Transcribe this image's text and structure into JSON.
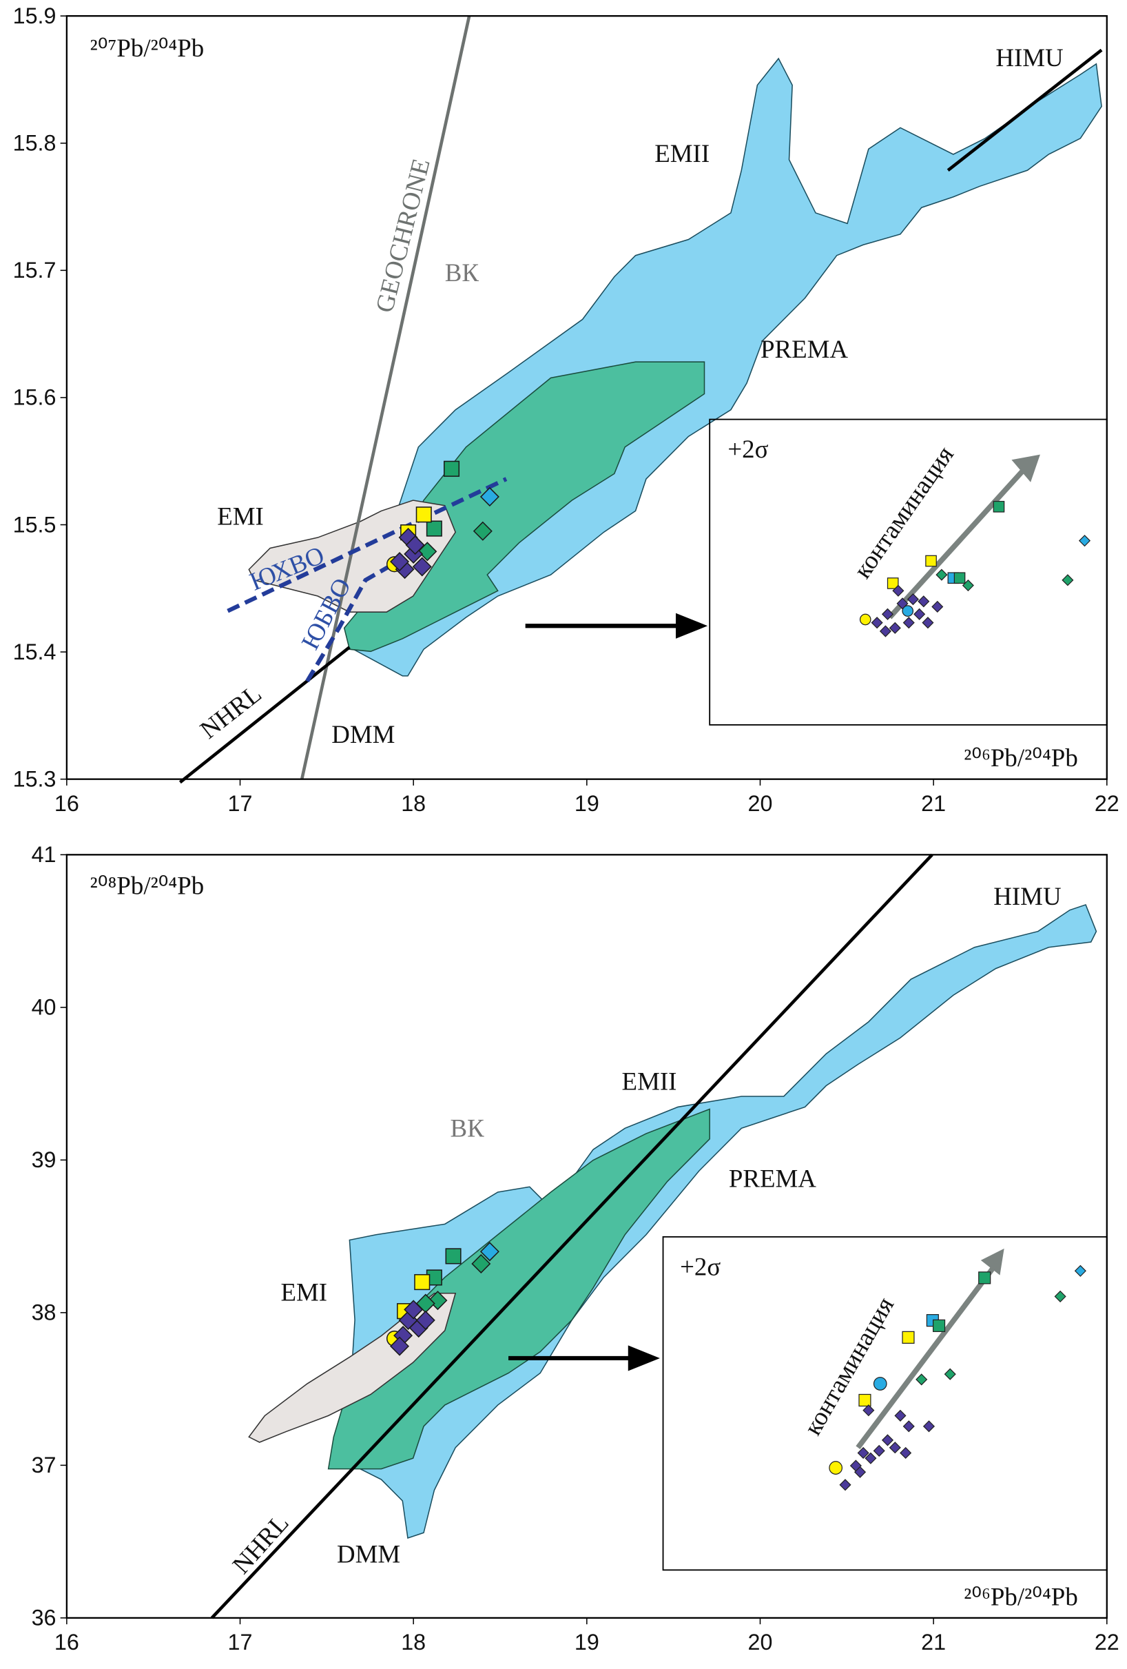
{
  "chart_data": [
    {
      "type": "scatter",
      "xlim": [
        16,
        22
      ],
      "xticks": [
        16,
        17,
        18,
        19,
        20,
        21,
        22
      ],
      "ylim": [
        15.3,
        15.9
      ],
      "yticks": [
        15.3,
        15.4,
        15.5,
        15.6,
        15.7,
        15.8,
        15.9
      ],
      "annotations": [
        "²⁰⁷Pb/²⁰⁴Pb",
        "HIMU",
        "EMII",
        "GEOCHRONE",
        "ВК",
        "PREMA",
        "EMI",
        "ЮХВО",
        "ЮБВО",
        "NHRL",
        "DMM",
        "+2σ",
        "контаминация",
        "²⁰⁶Pb/²⁰⁴Pb"
      ],
      "series": [
        {
          "color": "#1fa36a",
          "marker": "square",
          "x": [
            18.22,
            18.12
          ],
          "values": [
            15.544,
            15.497
          ]
        },
        {
          "color": "#1fa36a",
          "marker": "diamond",
          "x": [
            18.4,
            18.08
          ],
          "values": [
            15.495,
            15.479
          ]
        },
        {
          "color": "#29abe2",
          "marker": "diamond",
          "x": [
            18.44
          ],
          "values": [
            15.522
          ]
        },
        {
          "color": "#fff200",
          "marker": "square",
          "x": [
            18.06,
            17.97
          ],
          "values": [
            15.508,
            15.494
          ]
        },
        {
          "color": "#fff200",
          "marker": "circle",
          "x": [
            17.89
          ],
          "values": [
            15.469
          ]
        },
        {
          "color": "#4b3a9a",
          "marker": "diamond",
          "x": [
            17.97,
            18.0,
            17.95,
            18.05,
            18.01,
            17.92
          ],
          "values": [
            15.49,
            15.477,
            15.465,
            15.467,
            15.484,
            15.471
          ]
        }
      ]
    },
    {
      "type": "scatter",
      "xlim": [
        16,
        22
      ],
      "xticks": [
        16,
        17,
        18,
        19,
        20,
        21,
        22
      ],
      "ylim": [
        36,
        41
      ],
      "yticks": [
        36,
        37,
        38,
        39,
        40,
        41
      ],
      "annotations": [
        "²⁰⁸Pb/²⁰⁴Pb",
        "HIMU",
        "EMII",
        "ВК",
        "PREMA",
        "EMI",
        "NHRL",
        "DMM",
        "+2σ",
        "контаминация",
        "²⁰⁶Pb/²⁰⁴Pb"
      ],
      "series": [
        {
          "color": "#1fa36a",
          "marker": "square",
          "x": [
            18.23,
            18.12
          ],
          "values": [
            38.37,
            38.23
          ]
        },
        {
          "color": "#1fa36a",
          "marker": "diamond",
          "x": [
            18.39,
            18.14,
            18.07
          ],
          "values": [
            38.32,
            38.08,
            38.06
          ]
        },
        {
          "color": "#29abe2",
          "marker": "diamond",
          "x": [
            18.44
          ],
          "values": [
            38.4
          ]
        },
        {
          "color": "#fff200",
          "marker": "square",
          "x": [
            18.05,
            17.95
          ],
          "values": [
            38.2,
            38.01
          ]
        },
        {
          "color": "#fff200",
          "marker": "circle",
          "x": [
            17.89
          ],
          "values": [
            37.83
          ]
        },
        {
          "color": "#4b3a9a",
          "marker": "diamond",
          "x": [
            17.97,
            18.03,
            17.94,
            18.07,
            17.92,
            18.0
          ],
          "values": [
            37.95,
            37.9,
            37.85,
            37.95,
            37.78,
            38.02
          ]
        }
      ]
    }
  ]
}
